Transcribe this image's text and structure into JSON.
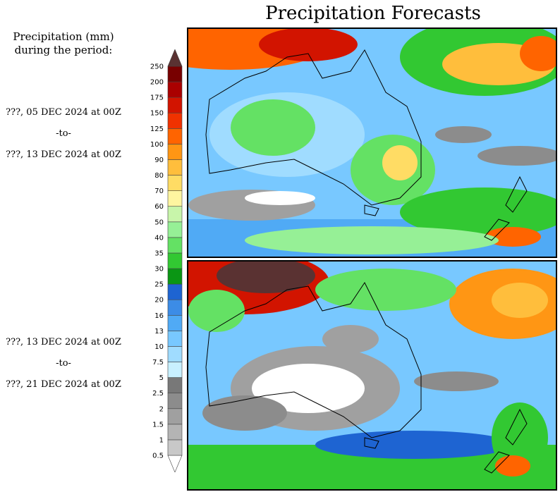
{
  "title": "Precipitation Forecasts",
  "legend": {
    "heading_line1": "Precipitation (mm)",
    "heading_line2": "during the period:",
    "levels": [
      "0.5",
      "1",
      "1.5",
      "2",
      "2.5",
      "5",
      "7.5",
      "10",
      "13",
      "16",
      "20",
      "25",
      "30",
      "35",
      "40",
      "50",
      "60",
      "70",
      "80",
      "90",
      "100",
      "125",
      "150",
      "175",
      "200",
      "250"
    ],
    "colors": [
      "#ffffff",
      "#c8c8c8",
      "#b4b4b4",
      "#a0a0a0",
      "#8c8c8c",
      "#787878",
      "#c8f0ff",
      "#a0dcff",
      "#78c8ff",
      "#50aaf5",
      "#3c8ce6",
      "#1e64d2",
      "#0a9614",
      "#32c832",
      "#64e164",
      "#96f096",
      "#c8f5aa",
      "#fff5a0",
      "#ffdc64",
      "#ffbe3c",
      "#ff9614",
      "#ff6400",
      "#f03200",
      "#d21400",
      "#aa0000",
      "#780000",
      "#5a3232"
    ]
  },
  "periods": [
    {
      "start": "???, 05 DEC 2024 at 00Z",
      "sep": "-to-",
      "end": "???, 13 DEC 2024 at 00Z"
    },
    {
      "start": "???, 13 DEC 2024 at 00Z",
      "sep": "-to-",
      "end": "???, 21 DEC 2024 at 00Z"
    }
  ],
  "maps": [
    {
      "region": "Australia and New Zealand",
      "dominant": "mixed blue/green with wet north-east and north-west"
    },
    {
      "region": "Australia and New Zealand",
      "dominant": "dry interior, very wet north-west and north-east"
    }
  ]
}
